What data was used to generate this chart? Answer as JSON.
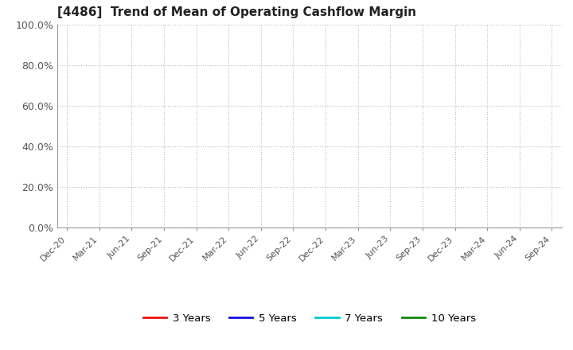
{
  "title": "[4486]  Trend of Mean of Operating Cashflow Margin",
  "title_fontsize": 11,
  "title_color": "#222222",
  "ylim": [
    0.0,
    1.0
  ],
  "yticks": [
    0.0,
    0.2,
    0.4,
    0.6,
    0.8,
    1.0
  ],
  "ytick_labels": [
    "0.0%",
    "20.0%",
    "40.0%",
    "60.0%",
    "80.0%",
    "100.0%"
  ],
  "xtick_labels": [
    "Dec-20",
    "Mar-21",
    "Jun-21",
    "Sep-21",
    "Dec-21",
    "Mar-22",
    "Jun-22",
    "Sep-22",
    "Dec-22",
    "Mar-23",
    "Jun-23",
    "Sep-23",
    "Dec-23",
    "Mar-24",
    "Jun-24",
    "Sep-24"
  ],
  "grid_color": "#bbbbbb",
  "grid_linestyle": ":",
  "background_color": "#ffffff",
  "plot_area_color": "#ffffff",
  "spine_color": "#999999",
  "tick_label_color": "#555555",
  "legend_entries": [
    {
      "label": "3 Years",
      "color": "#ee1111",
      "linewidth": 2
    },
    {
      "label": "5 Years",
      "color": "#1111dd",
      "linewidth": 2
    },
    {
      "label": "7 Years",
      "color": "#00cccc",
      "linewidth": 2
    },
    {
      "label": "10 Years",
      "color": "#118811",
      "linewidth": 2
    }
  ]
}
